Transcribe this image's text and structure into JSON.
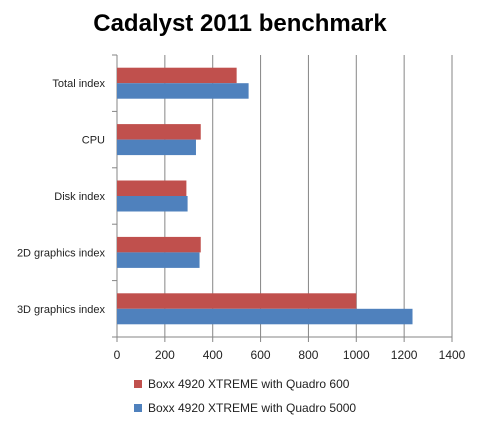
{
  "chart_data": {
    "type": "bar",
    "orientation": "horizontal",
    "title": "Cadalyst 2011 benchmark",
    "categories": [
      "Total index",
      "CPU",
      "Disk index",
      "2D graphics index",
      "3D graphics index"
    ],
    "series": [
      {
        "name": "Boxx 4920 XTREME with Quadro 600",
        "color": "#c0504d",
        "values": [
          500,
          350,
          290,
          350,
          1000
        ]
      },
      {
        "name": "Boxx 4920 XTREME with Quadro 5000",
        "color": "#4f81bd",
        "values": [
          550,
          330,
          295,
          345,
          1235
        ]
      }
    ],
    "xlim": [
      0,
      1400
    ],
    "xticks": [
      0,
      200,
      400,
      600,
      800,
      1000,
      1200,
      1400
    ],
    "grid": true,
    "legend_position": "bottom"
  }
}
